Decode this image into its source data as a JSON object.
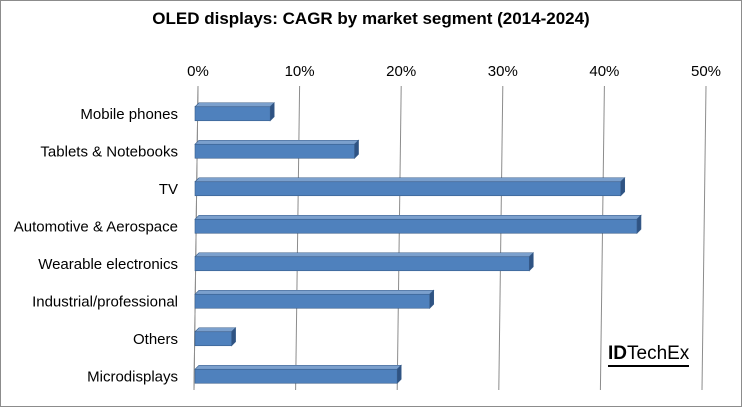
{
  "chart_data": {
    "type": "bar",
    "orientation": "horizontal",
    "title": "OLED displays: CAGR  by market segment (2014-2024)",
    "categories": [
      "Mobile phones",
      "Tablets & Notebooks",
      "TV",
      "Automotive & Aerospace",
      "Wearable electronics",
      "Industrial/professional",
      "Others",
      "Microdisplays"
    ],
    "values": [
      7.5,
      15.8,
      42.0,
      43.6,
      33.0,
      23.2,
      3.7,
      20.0
    ],
    "xlim": [
      0,
      50
    ],
    "x_ticks": [
      "0%",
      "10%",
      "20%",
      "30%",
      "40%",
      "50%"
    ],
    "x_axis_position": "top",
    "grid": true,
    "bar_color": "#4f81bd",
    "bar_edge_color": "#385d8a"
  },
  "logo": {
    "text_bold": "ID",
    "text_rest": "TechEx"
  }
}
